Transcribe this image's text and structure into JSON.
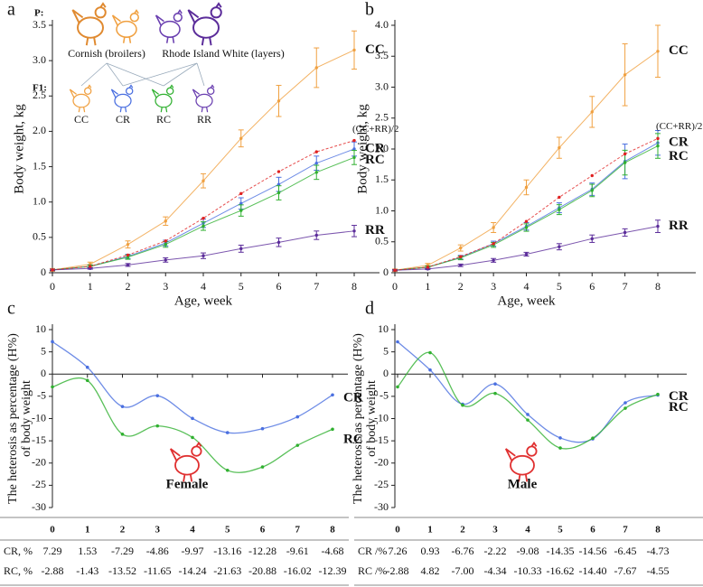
{
  "chart_data": [
    {
      "type": "line",
      "panel": "a",
      "xlabel": "Age, week",
      "ylabel": "Body weight, kg",
      "x": [
        0,
        1,
        2,
        3,
        4,
        5,
        6,
        7,
        8
      ],
      "xlim": [
        0,
        8
      ],
      "xticks": [
        0,
        1,
        2,
        3,
        4,
        5,
        6,
        7,
        8
      ],
      "ylim": [
        0,
        3.5
      ],
      "yticks": [
        0,
        0.5,
        {
          "value": 1,
          "label": "1.0"
        },
        1.5,
        {
          "value": 2,
          "label": "2.0"
        },
        2.5,
        {
          "value": 3,
          "label": "3.0"
        },
        3.5
      ],
      "inset": {
        "p_label": "P:",
        "f1_label": "F1:",
        "parents": [
          "Cornish (broilers)",
          "Rhode Island White (layers)"
        ],
        "offspring": [
          "CC",
          "CR",
          "RC",
          "RR"
        ]
      },
      "series": [
        {
          "name": "CC",
          "color": "#f0a040",
          "values": [
            0.04,
            0.12,
            0.4,
            0.73,
            1.3,
            1.9,
            2.43,
            2.9,
            3.15
          ],
          "errors": [
            0.02,
            0.03,
            0.05,
            0.06,
            0.1,
            0.12,
            0.22,
            0.28,
            0.27
          ]
        },
        {
          "name": "CR",
          "color": "#4a6fe0",
          "values": [
            0.04,
            0.09,
            0.23,
            0.42,
            0.7,
            0.98,
            1.25,
            1.55,
            1.75
          ],
          "errors": [
            0.01,
            0.02,
            0.03,
            0.04,
            0.06,
            0.08,
            0.1,
            0.1,
            0.1
          ]
        },
        {
          "name": "RC",
          "color": "#30b030",
          "values": [
            0.04,
            0.09,
            0.22,
            0.4,
            0.66,
            0.88,
            1.13,
            1.42,
            1.63
          ],
          "errors": [
            0.01,
            0.02,
            0.03,
            0.04,
            0.06,
            0.08,
            0.1,
            0.1,
            0.1
          ]
        },
        {
          "name": "RR",
          "color": "#5b2c9a",
          "values": [
            0.04,
            0.06,
            0.11,
            0.18,
            0.24,
            0.34,
            0.43,
            0.53,
            0.59
          ],
          "errors": [
            0.01,
            0.01,
            0.02,
            0.03,
            0.04,
            0.05,
            0.06,
            0.06,
            0.08
          ]
        },
        {
          "name": "(CC+RR)/2",
          "color": "#e02020",
          "dashed": true,
          "values": [
            0.04,
            0.09,
            0.25,
            0.45,
            0.77,
            1.12,
            1.43,
            1.71,
            1.87
          ]
        }
      ]
    },
    {
      "type": "line",
      "panel": "b",
      "xlabel": "Age, week",
      "ylabel": "Body weight, kg",
      "x": [
        0,
        1,
        2,
        3,
        4,
        5,
        6,
        7,
        8
      ],
      "xlim": [
        0,
        8
      ],
      "xticks": [
        0,
        1,
        2,
        3,
        4,
        5,
        6,
        7,
        8
      ],
      "ylim": [
        0,
        4
      ],
      "yticks": [
        0,
        0.5,
        {
          "value": 1,
          "label": "1.0"
        },
        1.5,
        {
          "value": 2,
          "label": "2.0"
        },
        2.5,
        {
          "value": 3,
          "label": "3.0"
        },
        3.5,
        {
          "value": 4,
          "label": "4.0"
        }
      ],
      "series": [
        {
          "name": "CC",
          "color": "#f0a040",
          "values": [
            0.04,
            0.12,
            0.4,
            0.73,
            1.38,
            2.02,
            2.6,
            3.2,
            3.58
          ],
          "errors": [
            0.02,
            0.03,
            0.05,
            0.08,
            0.12,
            0.17,
            0.25,
            0.5,
            0.42
          ]
        },
        {
          "name": "CR",
          "color": "#4a6fe0",
          "values": [
            0.04,
            0.09,
            0.25,
            0.47,
            0.75,
            1.05,
            1.35,
            1.8,
            2.1
          ],
          "errors": [
            0.01,
            0.02,
            0.03,
            0.04,
            0.06,
            0.08,
            0.1,
            0.28,
            0.2
          ]
        },
        {
          "name": "RC",
          "color": "#30b030",
          "values": [
            0.04,
            0.09,
            0.24,
            0.45,
            0.73,
            1.02,
            1.33,
            1.78,
            2.05
          ],
          "errors": [
            0.01,
            0.02,
            0.03,
            0.04,
            0.06,
            0.08,
            0.1,
            0.2,
            0.2
          ]
        },
        {
          "name": "RR",
          "color": "#5b2c9a",
          "values": [
            0.04,
            0.06,
            0.12,
            0.2,
            0.3,
            0.42,
            0.55,
            0.65,
            0.75
          ],
          "errors": [
            0.01,
            0.01,
            0.02,
            0.03,
            0.03,
            0.05,
            0.06,
            0.06,
            0.1
          ]
        },
        {
          "name": "(CC+RR)/2",
          "color": "#e02020",
          "dashed": true,
          "values": [
            0.04,
            0.09,
            0.26,
            0.47,
            0.83,
            1.22,
            1.57,
            1.92,
            2.17
          ]
        }
      ]
    },
    {
      "type": "smooth",
      "panel": "c",
      "ylabel": [
        "The heterosis as percentage (H%)",
        "of body weight"
      ],
      "annotation": "Female",
      "x": [
        0,
        1,
        2,
        3,
        4,
        5,
        6,
        7,
        8
      ],
      "xlim": [
        0,
        8
      ],
      "ylim": [
        -30,
        10
      ],
      "yticks": [
        -30,
        -25,
        -20,
        -15,
        -10,
        -5,
        0,
        5,
        10
      ],
      "series": [
        {
          "name": "CR",
          "row_label": "CR, %",
          "color": "#4a6fe0",
          "values": [
            7.29,
            1.53,
            -7.29,
            -4.86,
            -9.97,
            -13.16,
            -12.28,
            -9.61,
            -4.68
          ]
        },
        {
          "name": "RC",
          "row_label": "RC, %",
          "color": "#30b030",
          "values": [
            -2.88,
            -1.43,
            -13.52,
            -11.65,
            -14.24,
            -21.63,
            -20.88,
            -16.02,
            -12.39
          ]
        }
      ]
    },
    {
      "type": "smooth",
      "panel": "d",
      "ylabel": [
        "The heterosis as percentage (H%)",
        "of body weight"
      ],
      "annotation": "Male",
      "x": [
        0,
        1,
        2,
        3,
        4,
        5,
        6,
        7,
        8
      ],
      "xlim": [
        0,
        8
      ],
      "ylim": [
        -30,
        10
      ],
      "yticks": [
        -30,
        -25,
        -20,
        -15,
        -10,
        -5,
        0,
        5,
        10
      ],
      "series": [
        {
          "name": "CR",
          "row_label": "CR /%",
          "color": "#4a6fe0",
          "values": [
            7.26,
            0.93,
            -6.76,
            -2.22,
            -9.08,
            -14.35,
            -14.56,
            -6.45,
            -4.73
          ]
        },
        {
          "name": "RC",
          "row_label": "RC /%",
          "color": "#30b030",
          "values": [
            -2.88,
            4.82,
            -7,
            -4.34,
            -10.33,
            -16.62,
            -14.4,
            -7.67,
            -4.55
          ],
          "value_labels": [
            "-2.88",
            "4.82",
            "-7.00",
            "-4.34",
            "-10.33",
            "-16.62",
            "-14.40",
            "-7.67",
            "-4.55"
          ]
        }
      ]
    }
  ]
}
